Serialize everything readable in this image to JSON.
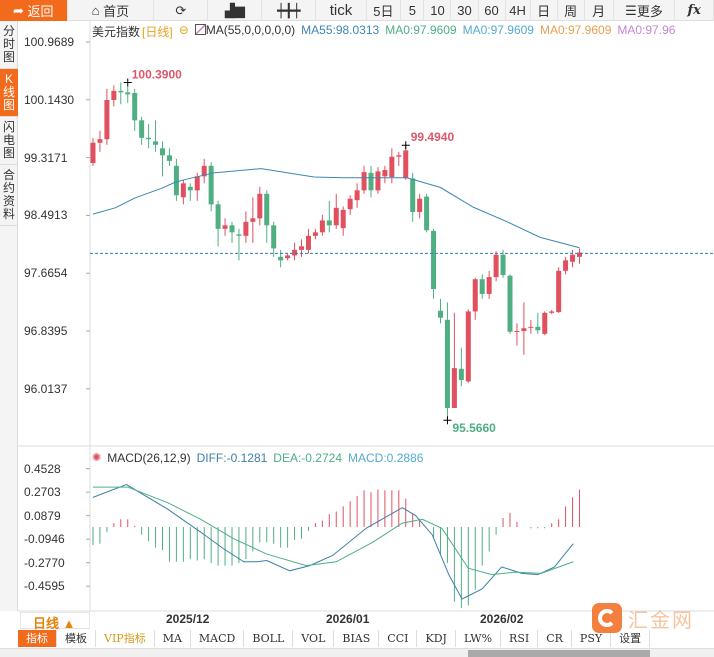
{
  "toolbar": {
    "back": "返回",
    "home": "首页",
    "refresh_icon": "refresh-icon",
    "chart_icon": "bar-chart-icon",
    "candle_icon": "candlestick-icon",
    "tick": "tick",
    "fiveday": "5日",
    "periods": [
      "5",
      "10",
      "30",
      "60",
      "4H",
      "日",
      "周",
      "月"
    ],
    "more": "更多",
    "fx": "fx"
  },
  "sidebar": [
    "分时图",
    "K线图",
    "闪电图",
    "合约资料"
  ],
  "legend": {
    "name": "美元指数",
    "period": "[日线]",
    "ma_label": "MA(55,0,0,0,0,0)",
    "ma55": "MA55:98.0313",
    "ma0a": "MA0:97.9609",
    "ma0b": "MA0:97.9609",
    "ma0c": "MA0:97.9609",
    "ma0d": "MA0:97.96"
  },
  "macd_legend": {
    "name": "MACD(26,12,9)",
    "diff": "DIFF:-0.1281",
    "dea": "DEA:-0.2724",
    "macd": "MACD:0.2886"
  },
  "colors": {
    "up": "#e0505f",
    "down": "#4faf83",
    "ma55": "#3d86b3",
    "diff": "#3d7fa8",
    "dea": "#4caf86",
    "accent": "#f26b1d"
  },
  "period_selector": "日线 ▲",
  "indicator_tabs": [
    "指标",
    "模板",
    "VIP指标",
    "MA",
    "MACD",
    "BOLL",
    "VOL",
    "BIAS",
    "CCI",
    "KDJ",
    "LW%",
    "RSI",
    "CR",
    "PSY",
    "设置"
  ],
  "logo_text": "汇金网",
  "chart_data": [
    {
      "type": "candlestick",
      "title": "美元指数",
      "ylim": [
        95.4,
        101.05
      ],
      "yticks": [
        "100.9689",
        "100.1430",
        "99.3171",
        "98.4913",
        "97.6654",
        "96.8395",
        "96.0137"
      ],
      "xticks": [
        {
          "label": "2025/12",
          "index": 13.7
        },
        {
          "label": "2026/01",
          "index": 36.7
        },
        {
          "label": "2026/02",
          "index": 58.8
        }
      ],
      "high_label": "100.3900",
      "high_index": 5,
      "mid_high_label": "99.4940",
      "mid_high_index": 45,
      "low_label": "95.5660",
      "low_index": 51,
      "last_price": 97.95,
      "ohlc": [
        [
          99.24,
          99.6,
          99.2,
          99.53
        ],
        [
          99.53,
          99.7,
          99.4,
          99.58
        ],
        [
          99.58,
          100.3,
          99.5,
          100.14
        ],
        [
          100.14,
          100.35,
          100.05,
          100.27
        ],
        [
          100.27,
          100.39,
          100.08,
          100.25
        ],
        [
          100.25,
          100.33,
          100.1,
          100.22
        ],
        [
          100.24,
          100.3,
          99.7,
          99.85
        ],
        [
          99.85,
          99.9,
          99.5,
          99.6
        ],
        [
          99.6,
          99.8,
          99.45,
          99.58
        ],
        [
          99.55,
          99.85,
          99.4,
          99.5
        ],
        [
          99.45,
          99.55,
          99.05,
          99.35
        ],
        [
          99.35,
          99.45,
          99.2,
          99.27
        ],
        [
          99.2,
          99.3,
          98.7,
          98.78
        ],
        [
          98.75,
          99.0,
          98.65,
          98.95
        ],
        [
          98.9,
          98.95,
          98.7,
          98.85
        ],
        [
          98.85,
          99.1,
          98.7,
          99.05
        ],
        [
          99.05,
          99.3,
          98.95,
          99.2
        ],
        [
          99.2,
          99.25,
          98.55,
          98.65
        ],
        [
          98.65,
          98.7,
          98.05,
          98.3
        ],
        [
          98.3,
          98.45,
          98.2,
          98.35
        ],
        [
          98.35,
          98.4,
          98.1,
          98.25
        ],
        [
          98.22,
          98.3,
          97.85,
          98.2
        ],
        [
          98.2,
          98.55,
          98.1,
          98.4
        ],
        [
          98.4,
          98.75,
          98.1,
          98.45
        ],
        [
          98.45,
          98.9,
          98.35,
          98.8
        ],
        [
          98.8,
          98.85,
          98.1,
          98.35
        ],
        [
          98.35,
          98.4,
          97.9,
          98.02
        ],
        [
          97.9,
          98.0,
          97.75,
          97.85
        ],
        [
          97.88,
          97.95,
          97.85,
          97.92
        ],
        [
          97.92,
          98.1,
          97.85,
          98.0
        ],
        [
          98.0,
          98.15,
          97.9,
          98.05
        ],
        [
          98.0,
          98.3,
          97.95,
          98.2
        ],
        [
          98.2,
          98.3,
          98.15,
          98.25
        ],
        [
          98.25,
          98.5,
          98.2,
          98.42
        ],
        [
          98.42,
          98.7,
          98.25,
          98.35
        ],
        [
          98.35,
          98.8,
          98.3,
          98.6
        ],
        [
          98.31,
          98.62,
          98.2,
          98.57
        ],
        [
          98.58,
          98.78,
          98.5,
          98.73
        ],
        [
          98.71,
          98.95,
          98.6,
          98.85
        ],
        [
          98.85,
          99.2,
          98.8,
          99.11
        ],
        [
          99.1,
          99.2,
          98.75,
          98.85
        ],
        [
          98.85,
          99.18,
          98.8,
          99.12
        ],
        [
          99.05,
          99.2,
          98.95,
          99.14
        ],
        [
          99.04,
          99.45,
          98.95,
          99.33
        ],
        [
          99.33,
          99.4,
          99.2,
          99.35
        ],
        [
          99.02,
          99.49,
          99.0,
          99.42
        ],
        [
          99.02,
          99.1,
          98.4,
          98.54
        ],
        [
          98.54,
          98.8,
          98.45,
          98.73
        ],
        [
          98.76,
          98.8,
          98.25,
          98.28
        ],
        [
          98.27,
          98.3,
          97.3,
          97.44
        ],
        [
          97.13,
          97.3,
          96.95,
          97.03
        ],
        [
          97.0,
          97.25,
          95.566,
          95.74
        ],
        [
          95.74,
          97.1,
          95.74,
          96.31
        ],
        [
          96.3,
          96.6,
          96.05,
          96.14
        ],
        [
          96.12,
          97.15,
          96.1,
          97.12
        ],
        [
          97.12,
          97.6,
          97.0,
          97.58
        ],
        [
          97.58,
          97.65,
          97.3,
          97.37
        ],
        [
          97.37,
          97.7,
          97.3,
          97.61
        ],
        [
          97.61,
          97.98,
          97.55,
          97.93
        ],
        [
          97.93,
          98.0,
          97.6,
          97.64
        ],
        [
          97.63,
          97.65,
          96.8,
          96.83
        ],
        [
          96.84,
          96.95,
          96.63,
          96.84
        ],
        [
          96.84,
          97.25,
          96.5,
          96.88
        ],
        [
          96.9,
          97.0,
          96.8,
          96.9
        ],
        [
          96.9,
          97.1,
          96.8,
          96.85
        ],
        [
          96.8,
          97.12,
          96.78,
          97.1
        ],
        [
          97.1,
          97.14,
          97.08,
          97.12
        ],
        [
          97.11,
          97.75,
          97.1,
          97.7
        ],
        [
          97.7,
          97.9,
          97.65,
          97.85
        ],
        [
          97.83,
          98.0,
          97.75,
          97.93
        ],
        [
          97.9,
          98.02,
          97.8,
          97.96
        ]
      ],
      "ma55": [
        [
          0,
          98.51
        ],
        [
          3.2,
          98.6
        ],
        [
          6,
          98.74
        ],
        [
          9.9,
          98.88
        ],
        [
          11.7,
          98.96
        ],
        [
          13.1,
          99.0
        ],
        [
          17.4,
          99.1
        ],
        [
          24.2,
          99.16
        ],
        [
          31.8,
          99.04
        ],
        [
          36,
          99.03
        ],
        [
          45.2,
          99.03
        ],
        [
          50,
          98.89
        ],
        [
          54.7,
          98.61
        ],
        [
          59.6,
          98.4
        ],
        [
          64.3,
          98.18
        ],
        [
          70,
          98.03
        ]
      ]
    },
    {
      "type": "macd",
      "yticks": [
        "0.4528",
        "0.2703",
        "0.0879",
        "-0.0946",
        "-0.2770",
        "-0.4595"
      ],
      "ylim": [
        -0.6,
        0.55
      ],
      "histogram": [
        -0.14,
        -0.13,
        -0.04,
        0.03,
        0.06,
        0.06,
        0.01,
        -0.06,
        -0.11,
        -0.16,
        -0.18,
        -0.27,
        -0.27,
        -0.27,
        -0.25,
        -0.26,
        -0.25,
        -0.28,
        -0.3,
        -0.3,
        -0.3,
        -0.28,
        -0.25,
        -0.19,
        -0.12,
        -0.12,
        -0.13,
        -0.16,
        -0.16,
        -0.1,
        -0.09,
        -0.03,
        0.03,
        0.05,
        0.1,
        0.12,
        0.16,
        0.2,
        0.24,
        0.285,
        0.27,
        0.29,
        0.285,
        0.285,
        0.285,
        0.22,
        0.1,
        0.06,
        0,
        -0.08,
        -0.21,
        -0.28,
        -0.58,
        -0.63,
        -0.61,
        -0.49,
        -0.3,
        -0.19,
        -0.06,
        0.07,
        0.11,
        0.04,
        0,
        -0.01,
        -0.01,
        -0.01,
        0.03,
        0.06,
        0.16,
        0.23,
        0.29
      ],
      "diff": [
        [
          0,
          0.23
        ],
        [
          4.8,
          0.33
        ],
        [
          10.7,
          0.14
        ],
        [
          15.5,
          -0.04
        ],
        [
          18.8,
          -0.17
        ],
        [
          21.7,
          -0.27
        ],
        [
          23.6,
          -0.27
        ],
        [
          25,
          -0.26
        ],
        [
          28.3,
          -0.34
        ],
        [
          31.2,
          -0.3
        ],
        [
          34.5,
          -0.22
        ],
        [
          39.3,
          -0.01
        ],
        [
          44.5,
          0.15
        ],
        [
          46.4,
          0.09
        ],
        [
          48.8,
          -0.06
        ],
        [
          51.2,
          -0.37
        ],
        [
          53.1,
          -0.56
        ],
        [
          56,
          -0.48
        ],
        [
          58.8,
          -0.31
        ],
        [
          61.7,
          -0.36
        ],
        [
          64,
          -0.37
        ],
        [
          66.4,
          -0.31
        ],
        [
          69.1,
          -0.13
        ]
      ],
      "dea": [
        [
          0,
          0.31
        ],
        [
          5,
          0.31
        ],
        [
          10.7,
          0.19
        ],
        [
          15.5,
          0.06
        ],
        [
          20.2,
          -0.09
        ],
        [
          25,
          -0.21
        ],
        [
          30.7,
          -0.3
        ],
        [
          35,
          -0.27
        ],
        [
          40.2,
          -0.12
        ],
        [
          44.5,
          0.03
        ],
        [
          47.4,
          0.06
        ],
        [
          50.2,
          -0.01
        ],
        [
          54,
          -0.32
        ],
        [
          57.4,
          -0.37
        ],
        [
          60.7,
          -0.35
        ],
        [
          64.5,
          -0.36
        ],
        [
          69.1,
          -0.27
        ]
      ]
    }
  ]
}
